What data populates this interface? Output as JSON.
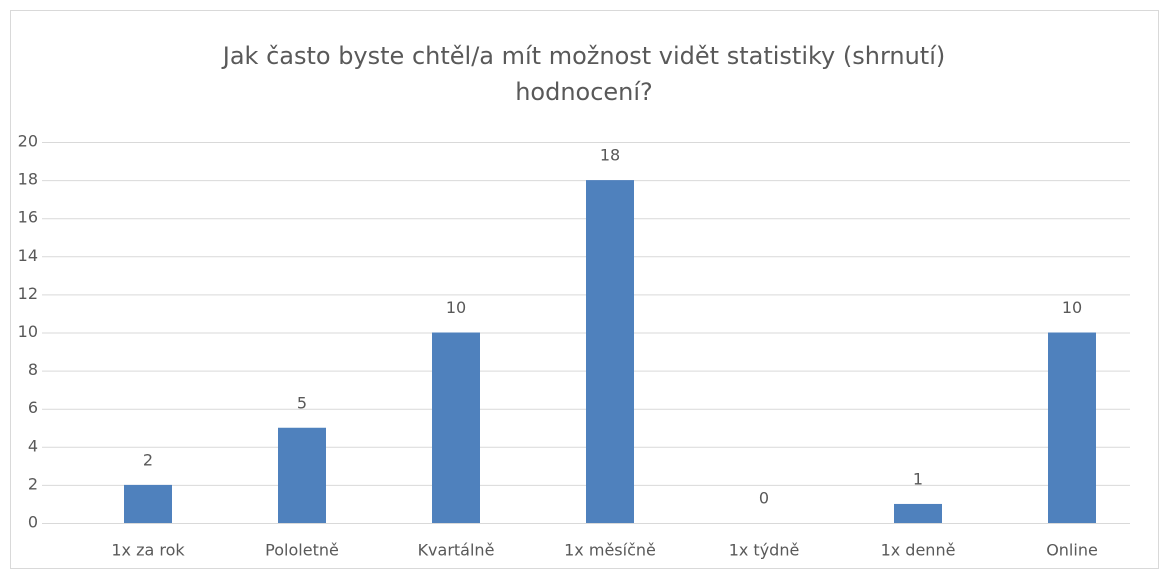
{
  "chart_data": {
    "type": "bar",
    "title": "Jak často byste chtěl/a mít možnost vidět statistiky (shrnutí) hodnocení?",
    "categories": [
      "1x za rok",
      "Pololetně",
      "Kvartálně",
      "1x měsíčně",
      "1x týdně",
      "1x denně",
      "Online"
    ],
    "values": [
      2,
      5,
      10,
      18,
      0,
      1,
      10
    ],
    "color": "#4f81bd",
    "ylim": [
      0,
      20
    ],
    "yticks": [
      0,
      2,
      4,
      6,
      8,
      10,
      12,
      14,
      16,
      18,
      20
    ],
    "grid": true
  }
}
